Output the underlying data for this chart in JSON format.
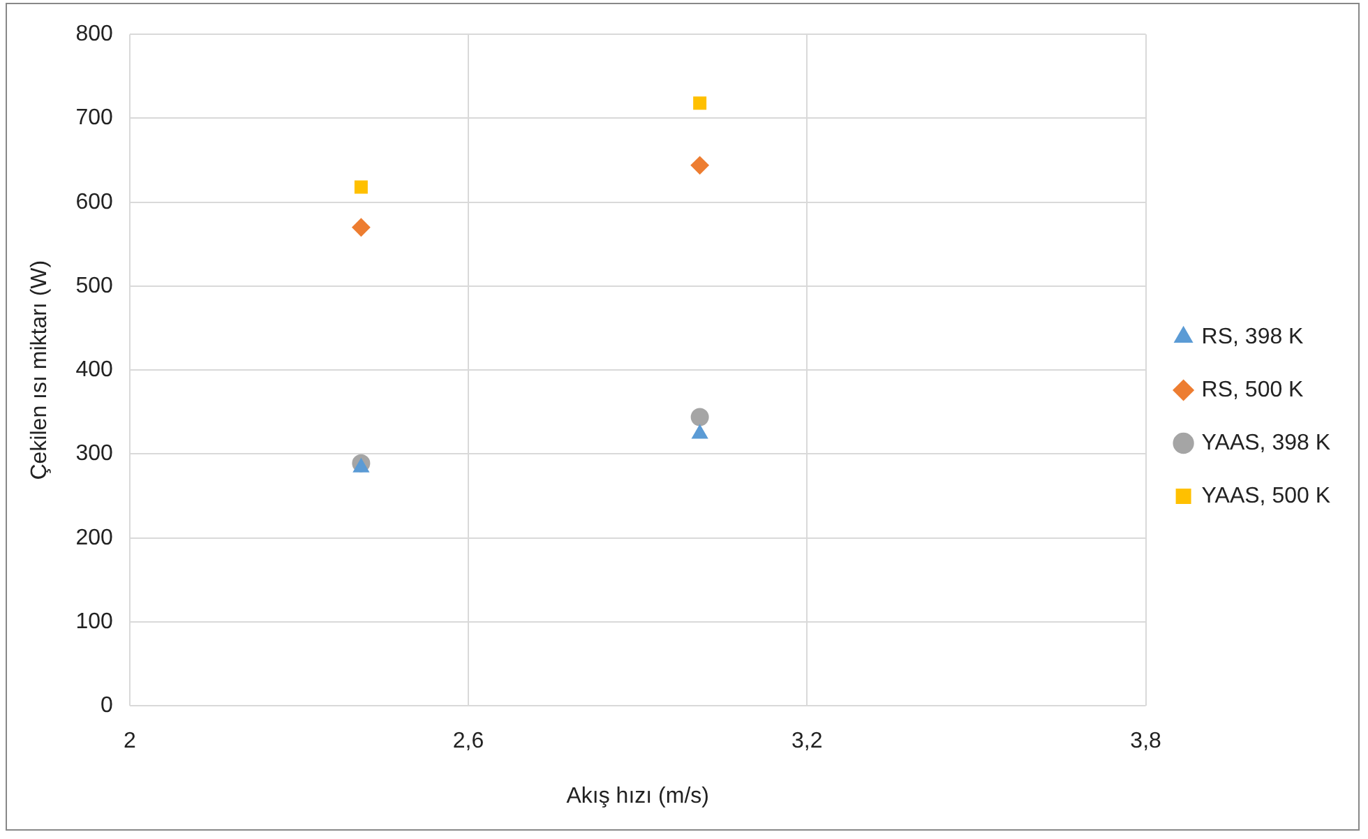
{
  "chart_data": {
    "type": "scatter",
    "xlabel": "Akış hızı (m/s)",
    "ylabel": "Çekilen ısı miktarı (W)",
    "xlim": [
      2,
      3.8
    ],
    "xticks": [
      {
        "value": 2,
        "label": "2"
      },
      {
        "value": 2.6,
        "label": "2,6"
      },
      {
        "value": 3.2,
        "label": "3,2"
      },
      {
        "value": 3.8,
        "label": "3,8"
      }
    ],
    "ylim": [
      0,
      800
    ],
    "yticks": [
      0,
      100,
      200,
      300,
      400,
      500,
      600,
      700,
      800
    ],
    "grid": true,
    "legend": "right",
    "x": [
      2.41,
      3.01
    ],
    "series": [
      {
        "name": "RS, 398 K",
        "color": "#5b9bd5",
        "marker": "triangle",
        "values": [
          284,
          324
        ]
      },
      {
        "name": "RS, 500 K",
        "color": "#ed7d31",
        "marker": "diamond",
        "values": [
          570,
          644
        ]
      },
      {
        "name": "YAAS, 398 K",
        "color": "#a5a5a5",
        "marker": "circle",
        "values": [
          289,
          344
        ]
      },
      {
        "name": "YAAS, 500 K",
        "color": "#ffc000",
        "marker": "square",
        "values": [
          618,
          718
        ]
      }
    ]
  }
}
